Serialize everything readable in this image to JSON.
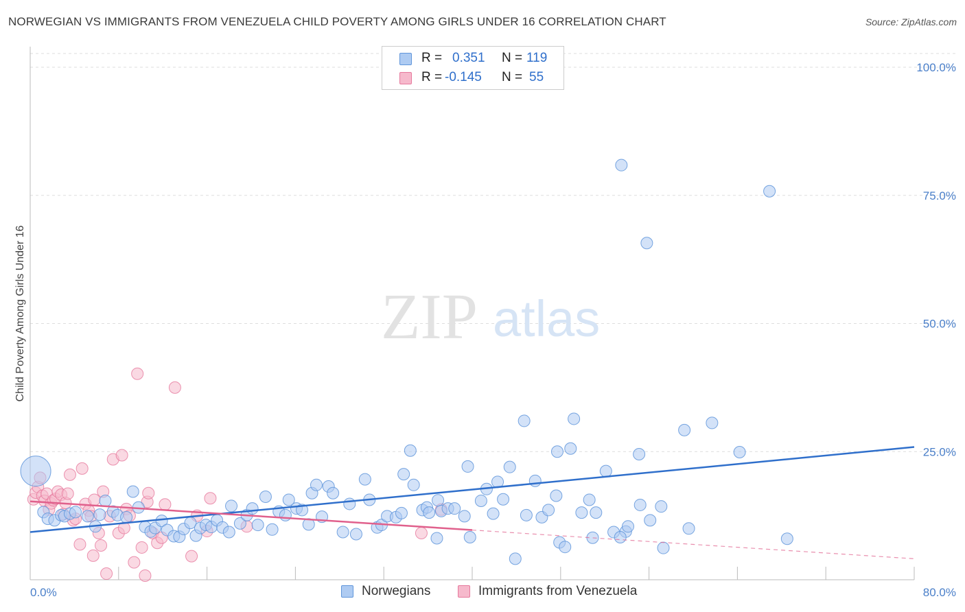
{
  "header": {
    "title": "NORWEGIAN VS IMMIGRANTS FROM VENEZUELA CHILD POVERTY AMONG GIRLS UNDER 16 CORRELATION CHART",
    "source": "Source: ZipAtlas.com"
  },
  "watermark": {
    "zip": "ZIP",
    "atlas": "atlas"
  },
  "legend": {
    "rows": [
      {
        "r_label": "R =",
        "r_value": "0.351",
        "n_label": "N =",
        "n_value": "119"
      },
      {
        "r_label": "R =",
        "r_value": "-0.145",
        "n_label": "N =",
        "n_value": "55"
      }
    ]
  },
  "bottom_legend": {
    "items": [
      {
        "label": "Norwegians"
      },
      {
        "label": "Immigrants from Venezuela"
      }
    ]
  },
  "colors": {
    "norwegians_fill": "#aecbf2",
    "norwegians_stroke": "#5f95da",
    "norwegians_line": "#2f6fcb",
    "venezuela_fill": "#f6b9cc",
    "venezuela_stroke": "#e6789c",
    "venezuela_line": "#e0608c",
    "tick_text": "#4a7fc9",
    "grid": "#dddddd"
  },
  "chart_data": {
    "type": "scatter",
    "title": "NORWEGIAN VS IMMIGRANTS FROM VENEZUELA CHILD POVERTY AMONG GIRLS UNDER 16 CORRELATION CHART",
    "xlabel": "",
    "ylabel": "Child Poverty Among Girls Under 16",
    "xlim": [
      0,
      80
    ],
    "ylim": [
      0,
      100
    ],
    "x_tick_labels": [
      "0.0%",
      "80.0%"
    ],
    "y_tick_labels": [
      "25.0%",
      "50.0%",
      "75.0%",
      "100.0%"
    ],
    "y_ticks": [
      25,
      50,
      75,
      100
    ],
    "grid": true,
    "legend_position": "top-center",
    "series": [
      {
        "name": "Norwegians",
        "r": 0.351,
        "n": 119,
        "trend": {
          "x": [
            0,
            80
          ],
          "y": [
            9.3,
            25.9
          ],
          "style": "solid"
        },
        "points": [
          [
            0.5,
            21.2
          ],
          [
            1.2,
            13.2
          ],
          [
            1.6,
            11.9
          ],
          [
            2.2,
            11.6
          ],
          [
            2.8,
            12.6
          ],
          [
            3.1,
            12.4
          ],
          [
            3.6,
            12.9
          ],
          [
            4.1,
            13.2
          ],
          [
            5.2,
            12.4
          ],
          [
            5.9,
            10.4
          ],
          [
            6.3,
            12.7
          ],
          [
            6.8,
            15.4
          ],
          [
            7.5,
            13.3
          ],
          [
            7.9,
            12.6
          ],
          [
            8.7,
            12.2
          ],
          [
            9.3,
            17.2
          ],
          [
            9.8,
            14.1
          ],
          [
            10.4,
            10.3
          ],
          [
            10.9,
            9.4
          ],
          [
            11.3,
            10.1
          ],
          [
            11.9,
            11.5
          ],
          [
            12.4,
            9.7
          ],
          [
            13.0,
            8.5
          ],
          [
            13.5,
            8.4
          ],
          [
            13.9,
            9.9
          ],
          [
            14.5,
            11.1
          ],
          [
            15.0,
            8.6
          ],
          [
            15.4,
            10.1
          ],
          [
            15.9,
            10.7
          ],
          [
            16.4,
            10.3
          ],
          [
            16.9,
            11.6
          ],
          [
            17.4,
            10.2
          ],
          [
            18.0,
            9.3
          ],
          [
            18.2,
            14.4
          ],
          [
            19.0,
            11.0
          ],
          [
            19.6,
            12.6
          ],
          [
            20.1,
            13.9
          ],
          [
            20.6,
            10.7
          ],
          [
            21.3,
            16.2
          ],
          [
            21.9,
            9.8
          ],
          [
            22.5,
            13.3
          ],
          [
            23.1,
            12.6
          ],
          [
            23.4,
            15.6
          ],
          [
            24.1,
            13.9
          ],
          [
            24.6,
            13.6
          ],
          [
            25.2,
            10.8
          ],
          [
            25.5,
            16.9
          ],
          [
            25.9,
            18.5
          ],
          [
            26.4,
            12.3
          ],
          [
            27.0,
            18.2
          ],
          [
            27.4,
            16.9
          ],
          [
            28.3,
            9.3
          ],
          [
            28.9,
            14.8
          ],
          [
            29.5,
            8.9
          ],
          [
            30.3,
            19.6
          ],
          [
            30.7,
            15.6
          ],
          [
            31.4,
            10.2
          ],
          [
            31.8,
            10.7
          ],
          [
            32.3,
            12.4
          ],
          [
            33.1,
            12.2
          ],
          [
            33.6,
            13.0
          ],
          [
            33.8,
            20.6
          ],
          [
            34.4,
            25.2
          ],
          [
            34.7,
            18.5
          ],
          [
            35.5,
            13.6
          ],
          [
            35.9,
            14.1
          ],
          [
            36.1,
            13.1
          ],
          [
            36.8,
            8.1
          ],
          [
            36.9,
            15.5
          ],
          [
            37.2,
            13.4
          ],
          [
            37.8,
            13.9
          ],
          [
            38.4,
            13.9
          ],
          [
            39.3,
            12.4
          ],
          [
            39.6,
            22.1
          ],
          [
            39.8,
            8.3
          ],
          [
            40.8,
            15.4
          ],
          [
            41.3,
            17.7
          ],
          [
            41.9,
            12.9
          ],
          [
            42.3,
            19.1
          ],
          [
            42.8,
            15.7
          ],
          [
            43.4,
            22.0
          ],
          [
            43.9,
            4.1
          ],
          [
            44.7,
            31.0
          ],
          [
            44.9,
            12.6
          ],
          [
            45.7,
            19.3
          ],
          [
            46.3,
            12.2
          ],
          [
            46.9,
            13.6
          ],
          [
            47.6,
            16.4
          ],
          [
            47.7,
            25.0
          ],
          [
            47.9,
            7.3
          ],
          [
            48.4,
            6.4
          ],
          [
            48.9,
            25.6
          ],
          [
            49.2,
            31.4
          ],
          [
            49.9,
            13.1
          ],
          [
            50.6,
            15.6
          ],
          [
            50.9,
            8.2
          ],
          [
            51.2,
            13.1
          ],
          [
            52.1,
            21.2
          ],
          [
            52.8,
            9.3
          ],
          [
            53.9,
            9.4
          ],
          [
            53.4,
            8.3
          ],
          [
            54.1,
            10.4
          ],
          [
            55.1,
            24.5
          ],
          [
            55.2,
            14.6
          ],
          [
            56.1,
            11.6
          ],
          [
            57.1,
            14.3
          ],
          [
            57.3,
            6.2
          ],
          [
            59.2,
            29.2
          ],
          [
            59.6,
            10.0
          ],
          [
            61.7,
            30.6
          ],
          [
            64.2,
            24.9
          ],
          [
            68.5,
            8.0
          ],
          [
            55.8,
            65.7
          ],
          [
            66.9,
            75.8
          ],
          [
            53.5,
            80.9
          ]
        ]
      },
      {
        "name": "Immigrants from Venezuela",
        "r": -0.145,
        "n": 55,
        "trend": {
          "x": [
            0,
            40
          ],
          "y": [
            15.3,
            9.7
          ],
          "style": "solid",
          "extended_x": [
            40,
            80
          ],
          "extended_y": [
            9.7,
            4.1
          ],
          "extended_style": "dashed"
        },
        "points": [
          [
            0.3,
            15.7
          ],
          [
            0.5,
            17.0
          ],
          [
            0.7,
            18.1
          ],
          [
            0.9,
            19.9
          ],
          [
            1.1,
            16.4
          ],
          [
            1.3,
            15.4
          ],
          [
            1.5,
            16.8
          ],
          [
            1.7,
            13.7
          ],
          [
            1.9,
            14.9
          ],
          [
            2.1,
            15.5
          ],
          [
            2.3,
            15.8
          ],
          [
            2.5,
            17.2
          ],
          [
            2.8,
            16.6
          ],
          [
            3.0,
            12.8
          ],
          [
            3.2,
            15.0
          ],
          [
            3.4,
            16.8
          ],
          [
            3.6,
            20.5
          ],
          [
            3.9,
            11.6
          ],
          [
            4.1,
            11.9
          ],
          [
            4.5,
            6.9
          ],
          [
            4.7,
            21.7
          ],
          [
            5.0,
            14.8
          ],
          [
            5.3,
            13.5
          ],
          [
            5.5,
            12.4
          ],
          [
            5.7,
            4.7
          ],
          [
            5.8,
            15.6
          ],
          [
            6.2,
            9.1
          ],
          [
            6.4,
            6.7
          ],
          [
            6.6,
            17.2
          ],
          [
            6.9,
            1.2
          ],
          [
            7.2,
            12.4
          ],
          [
            7.5,
            23.5
          ],
          [
            8.0,
            9.1
          ],
          [
            8.3,
            24.3
          ],
          [
            8.5,
            10.1
          ],
          [
            8.7,
            13.8
          ],
          [
            9.0,
            12.5
          ],
          [
            9.4,
            3.4
          ],
          [
            9.7,
            40.2
          ],
          [
            10.1,
            6.3
          ],
          [
            10.6,
            15.2
          ],
          [
            10.7,
            16.9
          ],
          [
            11.1,
            9.1
          ],
          [
            11.5,
            7.2
          ],
          [
            11.9,
            8.2
          ],
          [
            12.2,
            14.7
          ],
          [
            13.1,
            37.5
          ],
          [
            14.6,
            4.6
          ],
          [
            15.1,
            12.5
          ],
          [
            16.0,
            9.5
          ],
          [
            16.3,
            15.9
          ],
          [
            19.6,
            10.4
          ],
          [
            35.4,
            9.1
          ],
          [
            37.2,
            13.7
          ],
          [
            10.4,
            0.8
          ]
        ]
      }
    ]
  }
}
